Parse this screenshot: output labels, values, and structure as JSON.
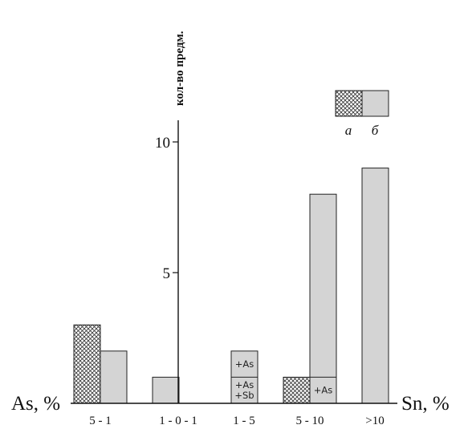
{
  "chart_data": {
    "type": "bar",
    "ylabel": "кол-во предм.",
    "x_left_label": "As, %",
    "x_right_label": "Sn, %",
    "categories": [
      "5 - 1",
      "1 - 0 - 1",
      "1 - 5",
      "5 - 10",
      ">10"
    ],
    "ylim": [
      0,
      11
    ],
    "yticks": [
      5,
      10
    ],
    "legend": {
      "placement": "top-right",
      "entries": [
        {
          "key": "a",
          "label": "а",
          "pattern": "crosshatch"
        },
        {
          "key": "b",
          "label": "б",
          "pattern": "solid"
        }
      ]
    },
    "series": [
      {
        "key": "a",
        "values": [
          3,
          0,
          0,
          1,
          0
        ]
      },
      {
        "key": "b",
        "values": [
          2,
          1,
          2,
          8,
          9
        ]
      }
    ],
    "annotations": [
      {
        "category": "1 - 5",
        "segment": [
          1,
          2
        ],
        "text": "+As"
      },
      {
        "category": "1 - 5",
        "segment": [
          0,
          1
        ],
        "text": "+As\n+Sb"
      },
      {
        "category": "5 - 10",
        "segment": [
          0,
          1
        ],
        "text": "+As"
      }
    ],
    "colors": {
      "fill_b": "#d4d4d4",
      "fill_a_bg": "#ffffff",
      "stroke": "#222222",
      "axis": "#111111"
    }
  }
}
